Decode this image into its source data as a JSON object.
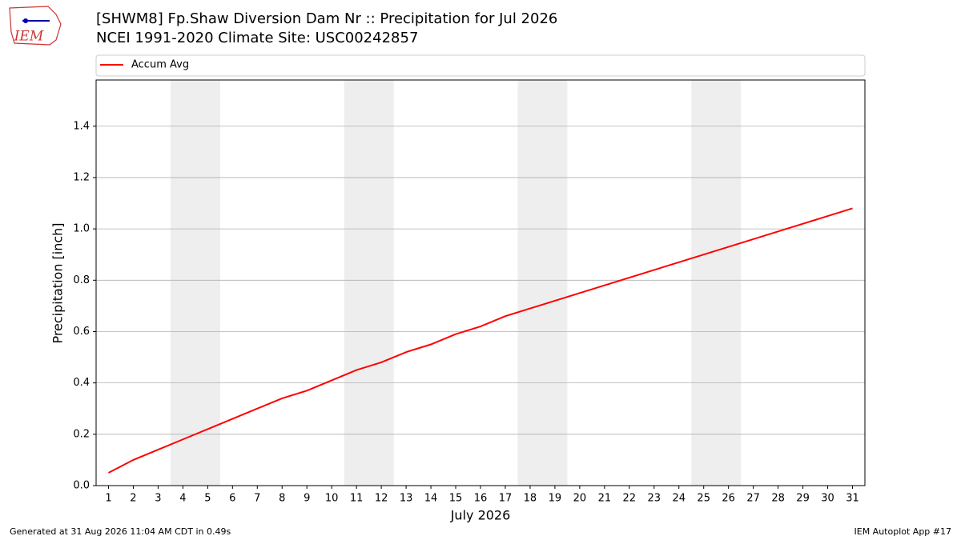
{
  "chart_data": {
    "type": "line",
    "logo": "IEM",
    "title": "[SHWM8] Fp.Shaw Diversion Dam Nr :: Precipitation for Jul 2026",
    "subtitle": "NCEI 1991-2020 Climate Site: USC00242857",
    "xlabel": "July 2026",
    "ylabel": "Precipitation [inch]",
    "x": [
      1,
      2,
      3,
      4,
      5,
      6,
      7,
      8,
      9,
      10,
      11,
      12,
      13,
      14,
      15,
      16,
      17,
      18,
      19,
      20,
      21,
      22,
      23,
      24,
      25,
      26,
      27,
      28,
      29,
      30,
      31
    ],
    "series": [
      {
        "name": "Accum Avg",
        "color": "#ff0000",
        "values": [
          0.05,
          0.1,
          0.14,
          0.18,
          0.22,
          0.26,
          0.3,
          0.34,
          0.37,
          0.41,
          0.45,
          0.48,
          0.52,
          0.55,
          0.59,
          0.62,
          0.66,
          0.69,
          0.72,
          0.75,
          0.78,
          0.81,
          0.84,
          0.87,
          0.9,
          0.93,
          0.96,
          0.99,
          1.02,
          1.05,
          1.08
        ]
      }
    ],
    "xlim": [
      0.5,
      31.5
    ],
    "xticks": [
      1,
      2,
      3,
      4,
      5,
      6,
      7,
      8,
      9,
      10,
      11,
      12,
      13,
      14,
      15,
      16,
      17,
      18,
      19,
      20,
      21,
      22,
      23,
      24,
      25,
      26,
      27,
      28,
      29,
      30,
      31
    ],
    "ylim": [
      0,
      1.58
    ],
    "yticks": [
      {
        "value": 0,
        "label": "0.0"
      },
      0.2,
      0.4,
      0.6,
      0.8,
      {
        "value": 1,
        "label": "1.0"
      },
      1.2,
      1.4
    ],
    "shaded_spans": [
      [
        3.5,
        5.5
      ],
      [
        10.5,
        12.5
      ],
      [
        17.5,
        19.5
      ],
      [
        24.5,
        26.5
      ]
    ],
    "shade_color": "#eeeeee",
    "grid": true,
    "legend": "top",
    "footer_left": "Generated at 31 Aug 2026 11:04 AM CDT in 0.49s",
    "footer_right": "IEM Autoplot App #17"
  }
}
